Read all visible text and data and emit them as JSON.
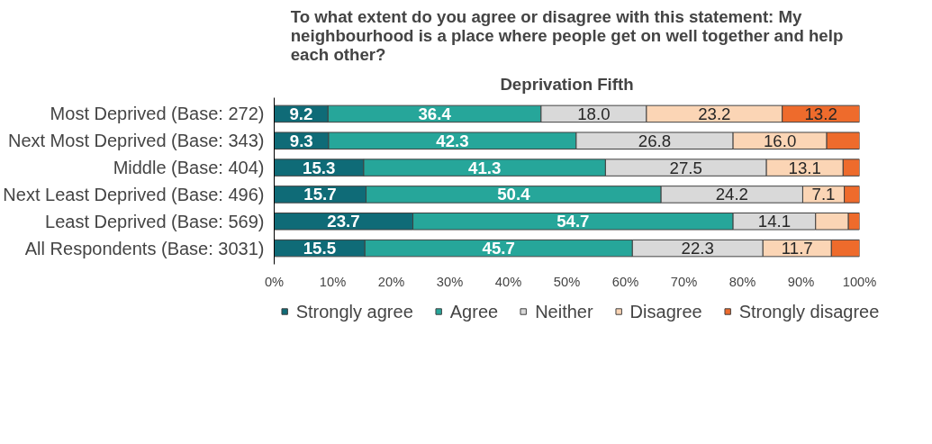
{
  "chart_data": {
    "type": "bar",
    "orientation": "horizontal",
    "stacked": true,
    "title": "To what extent do you agree or disagree with this statement: My neighbourhood is a place where people get on well together and help each other?",
    "subtitle": "Deprivation Fifth",
    "categories": [
      "Most Deprived (Base: 272)",
      "Next Most Deprived (Base: 343)",
      "Middle (Base: 404)",
      "Next Least Deprived (Base: 496)",
      "Least Deprived (Base: 569)",
      "All Respondents (Base: 3031)"
    ],
    "series": [
      {
        "name": "Strongly agree",
        "color": "#0f6b77",
        "values": [
          9.2,
          9.3,
          15.3,
          15.7,
          23.7,
          15.5
        ],
        "value_labels": [
          "9.2",
          "9.3",
          "15.3",
          "15.7",
          "23.7",
          "15.5"
        ]
      },
      {
        "name": "Agree",
        "color": "#26a69a",
        "values": [
          36.4,
          42.3,
          41.3,
          50.4,
          54.7,
          45.7
        ],
        "value_labels": [
          "36.4",
          "42.3",
          "41.3",
          "50.4",
          "54.7",
          "45.7"
        ]
      },
      {
        "name": "Neither",
        "color": "#d9d9d9",
        "values": [
          18.0,
          26.8,
          27.5,
          24.2,
          14.1,
          22.3
        ],
        "value_labels": [
          "18.0",
          "26.8",
          "27.5",
          "24.2",
          "14.1",
          "22.3"
        ]
      },
      {
        "name": "Disagree",
        "color": "#fbd5b5",
        "values": [
          23.2,
          16.0,
          13.1,
          7.1,
          5.6,
          11.7
        ],
        "value_labels": [
          "23.2",
          "16.0",
          "13.1",
          "7.1",
          null,
          "11.7"
        ]
      },
      {
        "name": "Strongly disagree",
        "color": "#ee6b2c",
        "values": [
          13.2,
          5.6,
          2.8,
          2.6,
          1.9,
          4.8
        ],
        "value_labels": [
          "13.2",
          null,
          null,
          null,
          null,
          null
        ]
      }
    ],
    "xlim": [
      0,
      100
    ],
    "xticks": [
      {
        "value": 0,
        "label": "0%"
      },
      {
        "value": 10,
        "label": "10%"
      },
      {
        "value": 20,
        "label": "20%"
      },
      {
        "value": 30,
        "label": "30%"
      },
      {
        "value": 40,
        "label": "40%"
      },
      {
        "value": 50,
        "label": "50%"
      },
      {
        "value": 60,
        "label": "60%"
      },
      {
        "value": 70,
        "label": "70%"
      },
      {
        "value": 80,
        "label": "80%"
      },
      {
        "value": 90,
        "label": "90%"
      },
      {
        "value": 100,
        "label": "100%"
      }
    ],
    "grid": false,
    "legend": "bottom"
  }
}
